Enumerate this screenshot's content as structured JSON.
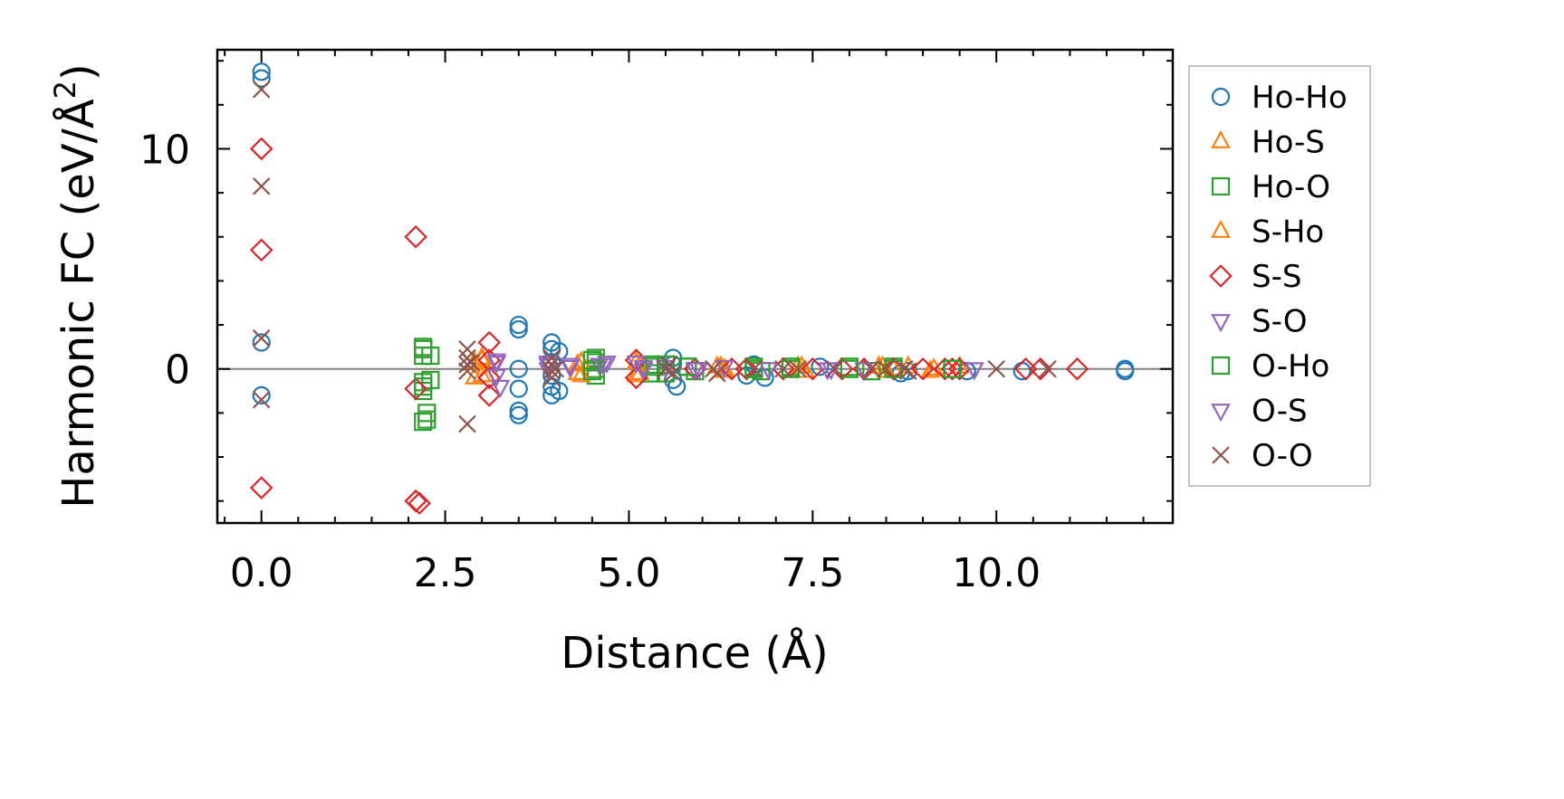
{
  "chart_data": {
    "type": "scatter",
    "xlabel": "Distance (Å)",
    "ylabel_prefix": "Harmonic FC (eV/Å",
    "ylabel_sup": "2",
    "ylabel_suffix": ")",
    "xlim": [
      -0.6,
      12.4
    ],
    "ylim": [
      -7.0,
      14.5
    ],
    "x_ticks": [
      0.0,
      2.5,
      5.0,
      7.5,
      10.0
    ],
    "x_tick_labels": [
      "0.0",
      "2.5",
      "5.0",
      "7.5",
      "10.0"
    ],
    "y_ticks": [
      0,
      10
    ],
    "y_tick_labels": [
      "0",
      "10"
    ],
    "x_minor_step": 0.5,
    "y_minor_step": 2,
    "reference_line_y": 0,
    "reference_line_color": "#808080",
    "grid": false,
    "legend_position": "outside-right",
    "series": [
      {
        "name": "Ho-Ho",
        "marker": "circle",
        "color": "#1f77b4",
        "points": [
          [
            0,
            13.5
          ],
          [
            0,
            13.2
          ],
          [
            0,
            1.2
          ],
          [
            0,
            -1.2
          ],
          [
            3.5,
            2.0
          ],
          [
            3.5,
            1.8
          ],
          [
            3.5,
            0.0
          ],
          [
            3.5,
            -0.9
          ],
          [
            3.5,
            -1.9
          ],
          [
            3.5,
            -2.1
          ],
          [
            3.95,
            1.2
          ],
          [
            3.95,
            0.9
          ],
          [
            3.95,
            0.3
          ],
          [
            3.95,
            -0.3
          ],
          [
            3.95,
            -0.8
          ],
          [
            3.95,
            -1.2
          ],
          [
            4.05,
            0.8
          ],
          [
            4.05,
            -1.0
          ],
          [
            5.6,
            0.5
          ],
          [
            5.6,
            0.2
          ],
          [
            5.6,
            -0.5
          ],
          [
            5.65,
            -0.8
          ],
          [
            6.6,
            -0.3
          ],
          [
            6.7,
            0.2
          ],
          [
            6.85,
            -0.4
          ],
          [
            7.6,
            0.1
          ],
          [
            8.7,
            -0.2
          ],
          [
            8.8,
            -0.1
          ],
          [
            9.6,
            -0.1
          ],
          [
            10.35,
            -0.1
          ],
          [
            11.75,
            0.0
          ],
          [
            11.75,
            -0.1
          ]
        ]
      },
      {
        "name": "Ho-S",
        "marker": "triangle-up",
        "color": "#ff7f0e",
        "points": [
          [
            2.9,
            0.3
          ],
          [
            2.9,
            -0.4
          ],
          [
            3.0,
            0.5
          ],
          [
            3.05,
            -0.3
          ],
          [
            4.3,
            0.2
          ],
          [
            4.3,
            -0.2
          ],
          [
            5.1,
            0.3
          ],
          [
            5.1,
            -0.3
          ],
          [
            6.2,
            0.1
          ],
          [
            6.3,
            -0.1
          ],
          [
            7.3,
            0.1
          ],
          [
            7.4,
            -0.1
          ],
          [
            8.4,
            0.1
          ],
          [
            8.5,
            -0.1
          ],
          [
            8.8,
            0.1
          ],
          [
            9.1,
            -0.1
          ],
          [
            9.5,
            0.1
          ]
        ]
      },
      {
        "name": "Ho-O",
        "marker": "square",
        "color": "#2ca02c",
        "points": [
          [
            2.2,
            1.0
          ],
          [
            2.2,
            0.6
          ],
          [
            2.2,
            -0.6
          ],
          [
            2.2,
            -1.0
          ],
          [
            2.2,
            -2.4
          ],
          [
            2.25,
            -2.0
          ],
          [
            2.3,
            0.6
          ],
          [
            2.3,
            -0.5
          ],
          [
            4.55,
            0.5
          ],
          [
            4.55,
            0.3
          ],
          [
            4.55,
            0.0
          ],
          [
            4.55,
            -0.3
          ],
          [
            5.3,
            0.2
          ],
          [
            5.3,
            -0.2
          ],
          [
            5.5,
            0.2
          ],
          [
            5.5,
            -0.2
          ],
          [
            5.8,
            0.1
          ],
          [
            5.9,
            -0.1
          ],
          [
            6.7,
            0.1
          ],
          [
            6.8,
            -0.1
          ],
          [
            7.2,
            0.1
          ],
          [
            8.0,
            0.1
          ],
          [
            8.3,
            -0.1
          ],
          [
            8.6,
            0.1
          ],
          [
            9.4,
            0.0
          ]
        ]
      },
      {
        "name": "S-Ho",
        "marker": "triangle-up",
        "color": "#ff7f0e",
        "points": [
          [
            3.0,
            0.4
          ],
          [
            3.0,
            -0.3
          ],
          [
            4.35,
            0.3
          ],
          [
            4.35,
            -0.3
          ],
          [
            5.15,
            0.2
          ],
          [
            5.15,
            -0.2
          ],
          [
            6.25,
            0.1
          ],
          [
            6.3,
            0.0
          ],
          [
            7.35,
            0.1
          ],
          [
            8.45,
            0.1
          ],
          [
            8.6,
            0.0
          ],
          [
            9.15,
            0.0
          ]
        ]
      },
      {
        "name": "S-S",
        "marker": "diamond",
        "color": "#d62728",
        "points": [
          [
            0,
            10.0
          ],
          [
            0,
            5.4
          ],
          [
            0,
            -5.4
          ],
          [
            2.1,
            6.0
          ],
          [
            2.1,
            -0.9
          ],
          [
            2.1,
            -6.0
          ],
          [
            2.15,
            -6.1
          ],
          [
            3.1,
            1.2
          ],
          [
            3.1,
            0.4
          ],
          [
            3.1,
            -0.4
          ],
          [
            3.1,
            -1.2
          ],
          [
            5.1,
            0.4
          ],
          [
            5.1,
            -0.4
          ],
          [
            5.9,
            0.0
          ],
          [
            6.4,
            0.0
          ],
          [
            6.6,
            0.0
          ],
          [
            7.1,
            0.0
          ],
          [
            7.5,
            0.0
          ],
          [
            7.9,
            0.0
          ],
          [
            8.2,
            0.0
          ],
          [
            8.6,
            0.0
          ],
          [
            9.0,
            0.0
          ],
          [
            9.3,
            0.0
          ],
          [
            9.4,
            0.0
          ],
          [
            9.5,
            0.0
          ],
          [
            10.4,
            0.0
          ],
          [
            10.6,
            0.0
          ],
          [
            11.1,
            0.0
          ]
        ]
      },
      {
        "name": "S-O",
        "marker": "triangle-down",
        "color": "#9467bd",
        "points": [
          [
            3.2,
            0.4
          ],
          [
            3.2,
            -0.3
          ],
          [
            3.25,
            -0.8
          ],
          [
            3.9,
            0.3
          ],
          [
            3.9,
            0.0
          ],
          [
            4.2,
            0.2
          ],
          [
            4.6,
            0.2
          ],
          [
            4.7,
            0.3
          ],
          [
            5.1,
            0.3
          ],
          [
            5.2,
            0.1
          ],
          [
            5.5,
            0.1
          ],
          [
            5.9,
            0.0
          ],
          [
            6.3,
            0.1
          ],
          [
            6.9,
            0.0
          ],
          [
            7.7,
            0.0
          ],
          [
            8.2,
            0.0
          ],
          [
            9.7,
            0.0
          ]
        ]
      },
      {
        "name": "O-Ho",
        "marker": "square",
        "color": "#2ca02c",
        "points": [
          [
            2.2,
            0.9
          ],
          [
            2.2,
            -0.8
          ],
          [
            2.25,
            -2.3
          ],
          [
            4.5,
            0.4
          ],
          [
            4.5,
            -0.1
          ],
          [
            5.35,
            0.1
          ],
          [
            5.8,
            0.1
          ],
          [
            6.7,
            0.0
          ],
          [
            7.2,
            0.0
          ],
          [
            8.0,
            0.0
          ],
          [
            8.6,
            0.0
          ],
          [
            9.4,
            0.0
          ]
        ]
      },
      {
        "name": "O-S",
        "marker": "triangle-down",
        "color": "#9467bd",
        "points": [
          [
            3.2,
            0.3
          ],
          [
            3.9,
            0.2
          ],
          [
            4.2,
            0.1
          ],
          [
            4.65,
            0.2
          ],
          [
            5.2,
            0.0
          ],
          [
            5.95,
            0.0
          ],
          [
            6.9,
            0.0
          ],
          [
            7.75,
            0.0
          ],
          [
            9.7,
            0.0
          ]
        ]
      },
      {
        "name": "O-O",
        "marker": "x",
        "color": "#8c564b",
        "points": [
          [
            0,
            12.7
          ],
          [
            0,
            8.3
          ],
          [
            0,
            1.4
          ],
          [
            0,
            -1.4
          ],
          [
            2.8,
            0.9
          ],
          [
            2.8,
            0.5
          ],
          [
            2.8,
            0.2
          ],
          [
            2.8,
            -0.1
          ],
          [
            2.8,
            -2.5
          ],
          [
            2.85,
            0.3
          ],
          [
            3.95,
            0.5
          ],
          [
            3.95,
            0.2
          ],
          [
            3.95,
            -0.1
          ],
          [
            3.95,
            -0.4
          ],
          [
            4.0,
            0.0
          ],
          [
            5.5,
            0.0
          ],
          [
            5.55,
            0.2
          ],
          [
            5.6,
            -0.2
          ],
          [
            6.15,
            0.0
          ],
          [
            6.2,
            -0.2
          ],
          [
            6.7,
            0.0
          ],
          [
            7.1,
            0.0
          ],
          [
            7.3,
            0.0
          ],
          [
            7.8,
            0.0
          ],
          [
            8.3,
            0.0
          ],
          [
            8.5,
            0.0
          ],
          [
            8.75,
            0.0
          ],
          [
            8.8,
            -0.1
          ],
          [
            10.0,
            0.0
          ],
          [
            10.7,
            0.0
          ]
        ]
      }
    ]
  }
}
